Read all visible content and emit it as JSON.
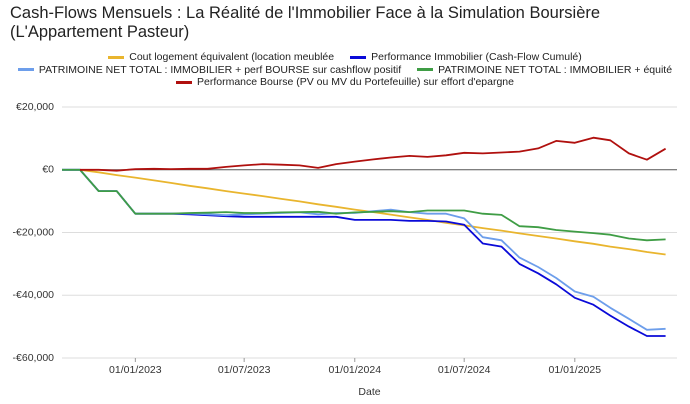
{
  "chart_data": {
    "type": "line",
    "title": "Cash-Flows Mensuels : La Réalité de l'Immobilier Face à la Simulation Boursière (L'Appartement Pasteur)",
    "x_label": "Date",
    "x": [
      "01/09/2022",
      "01/10/2022",
      "01/11/2022",
      "01/12/2022",
      "01/01/2023",
      "01/02/2023",
      "01/03/2023",
      "01/04/2023",
      "01/05/2023",
      "01/06/2023",
      "01/07/2023",
      "01/08/2023",
      "01/09/2023",
      "01/10/2023",
      "01/11/2023",
      "01/12/2023",
      "01/01/2024",
      "01/02/2024",
      "01/03/2024",
      "01/04/2024",
      "01/05/2024",
      "01/06/2024",
      "01/07/2024",
      "01/08/2024",
      "01/09/2024",
      "01/10/2024",
      "01/11/2024",
      "01/12/2024",
      "01/01/2025",
      "01/02/2025",
      "01/03/2025",
      "01/04/2025",
      "01/05/2025",
      "01/06/2025"
    ],
    "xlim": [
      "01/09/2022",
      "20/06/2025"
    ],
    "xticks": [
      "01/01/2023",
      "01/07/2023",
      "01/01/2024",
      "01/07/2024",
      "01/01/2025"
    ],
    "ylim": [
      -60000,
      20000
    ],
    "yticks": [
      {
        "value": 20000,
        "label": "€20,000"
      },
      {
        "value": 0,
        "label": "€0"
      },
      {
        "value": -20000,
        "label": "-€20,000"
      },
      {
        "value": -40000,
        "label": "-€40,000"
      },
      {
        "value": -60000,
        "label": "-€60,000"
      }
    ],
    "grid": true,
    "series": [
      {
        "name": "Cout logement équivalent (location meublée",
        "color": "#e9b52e",
        "values": [
          null,
          0,
          -800,
          -1700,
          -2500,
          -3400,
          -4200,
          -5100,
          -5900,
          -6800,
          -7600,
          -8400,
          -9300,
          -10100,
          -11000,
          -11800,
          -12700,
          -13500,
          -14300,
          -15200,
          -16000,
          -16900,
          -17700,
          -18600,
          -19400,
          -20300,
          -21100,
          -21900,
          -22800,
          -23600,
          -24500,
          -25300,
          -26200,
          -27000
        ]
      },
      {
        "name": "Performance Immobilier (Cash-Flow Cumulé)",
        "color": "#0a0ad8",
        "values": [
          0,
          0,
          -6800,
          -6800,
          -14000,
          -14000,
          -14000,
          -14200,
          -14500,
          -14800,
          -15000,
          -15000,
          -15000,
          -15000,
          -15000,
          -15000,
          -16000,
          -16000,
          -16000,
          -16300,
          -16300,
          -16500,
          -17500,
          -23500,
          -24500,
          -30000,
          -33000,
          -36500,
          -40800,
          -43000,
          -46500,
          -50000,
          -53000,
          -53000
        ]
      },
      {
        "name": "PATRIMOINE NET TOTAL : IMMOBILIER + perf BOURSE sur cashflow positif",
        "color": "#6d9eeb",
        "values": [
          0,
          0,
          -6800,
          -6800,
          -14000,
          -14000,
          -14000,
          -13900,
          -14200,
          -14500,
          -14200,
          -14000,
          -13800,
          -13600,
          -14200,
          -13800,
          -13800,
          -13200,
          -12700,
          -13500,
          -14000,
          -14000,
          -15500,
          -21500,
          -22500,
          -28000,
          -31000,
          -34500,
          -38800,
          -40500,
          -44000,
          -47500,
          -51000,
          -50700
        ]
      },
      {
        "name": "PATRIMOINE NET TOTAL : IMMOBILIER + équité",
        "color": "#3f9d45",
        "values": [
          0,
          0,
          -6800,
          -6800,
          -14000,
          -14000,
          -14000,
          -13800,
          -13700,
          -13500,
          -13800,
          -13800,
          -13600,
          -13500,
          -13400,
          -14000,
          -13600,
          -13400,
          -13200,
          -13500,
          -13000,
          -13000,
          -13000,
          -14000,
          -14400,
          -18000,
          -18300,
          -19200,
          -19700,
          -20200,
          -20700,
          -21900,
          -22500,
          -22200
        ]
      },
      {
        "name": "Performance Bourse (PV ou MV du Portefeuille) sur effort d'epargne",
        "color": "#b0100e",
        "values": [
          null,
          0,
          0,
          -300,
          200,
          300,
          200,
          300,
          300,
          900,
          1400,
          1800,
          1600,
          1400,
          600,
          1800,
          2600,
          3300,
          3900,
          4400,
          4100,
          4600,
          5400,
          5200,
          5500,
          5800,
          6800,
          9200,
          8600,
          10200,
          9400,
          5200,
          3200,
          6700
        ]
      }
    ]
  }
}
